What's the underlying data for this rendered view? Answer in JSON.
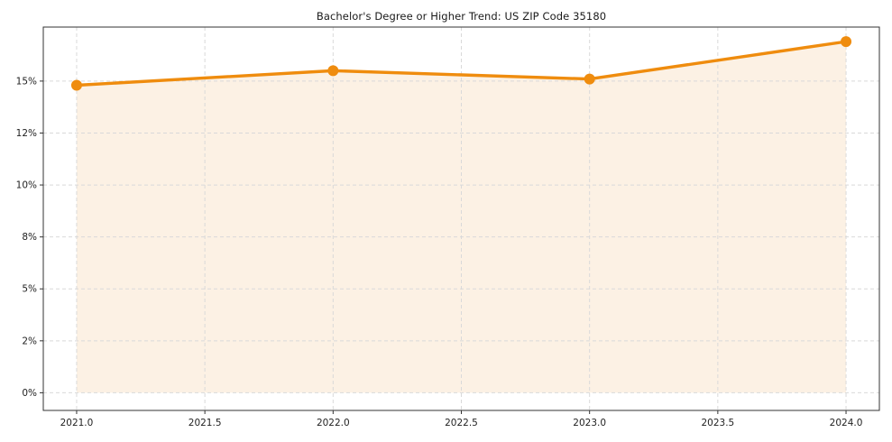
{
  "page": {
    "background": "#ffffff"
  },
  "chart_data": {
    "type": "line",
    "title": "Bachelor's Degree or Higher Trend: US ZIP Code 35180",
    "series": [
      {
        "name": "Bachelor's Degree or Higher",
        "x": [
          2021,
          2022,
          2023,
          2024
        ],
        "values": [
          14.8,
          15.5,
          15.1,
          16.9
        ]
      }
    ],
    "x_ticks": [
      2021.0,
      2021.5,
      2022.0,
      2022.5,
      2023.0,
      2023.5,
      2024.0
    ],
    "x_tick_labels": [
      "2021.0",
      "2021.5",
      "2022.0",
      "2022.5",
      "2023.0",
      "2023.5",
      "2024.0"
    ],
    "y_ticks": [
      0,
      2.5,
      5,
      7.5,
      10,
      12.5,
      15
    ],
    "y_tick_labels": [
      "0%",
      "2%",
      "5%",
      "8%",
      "10%",
      "12%",
      "15%"
    ],
    "xlim": [
      2020.87,
      2024.13
    ],
    "ylim": [
      -0.85,
      17.6
    ],
    "grid": true,
    "grid_style": "dashed",
    "legend": "none",
    "area_fill_to": 0,
    "marker": "circle",
    "line_color": "#ef8c0e",
    "fill_color": "#fcf1e4",
    "grid_color": "#d9d9d9",
    "spine_color": "#333333",
    "tick_label_color": "#222222"
  }
}
